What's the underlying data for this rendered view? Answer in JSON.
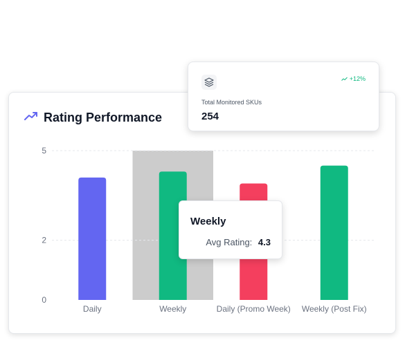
{
  "card": {
    "title": "Rating Performance",
    "icon": "trending-up-icon"
  },
  "chart_data": {
    "type": "bar",
    "categories": [
      "Daily",
      "Weekly",
      "Daily (Promo Week)",
      "Weekly (Post Fix)"
    ],
    "values": [
      4.1,
      4.3,
      3.9,
      4.5
    ],
    "colors": [
      "#6366f1",
      "#10b981",
      "#f43f5e",
      "#10b981"
    ],
    "y_ticks": [
      0,
      2,
      5
    ],
    "ylim": [
      0,
      5
    ],
    "grid": true,
    "highlighted_category": "Weekly"
  },
  "tooltip": {
    "title": "Weekly",
    "label": "Avg Rating:",
    "value": "4.3"
  },
  "kpi": {
    "icon": "layers-icon",
    "change": "+12%",
    "label": "Total Monitored SKUs",
    "value": "254",
    "change_color": "#10b981"
  }
}
